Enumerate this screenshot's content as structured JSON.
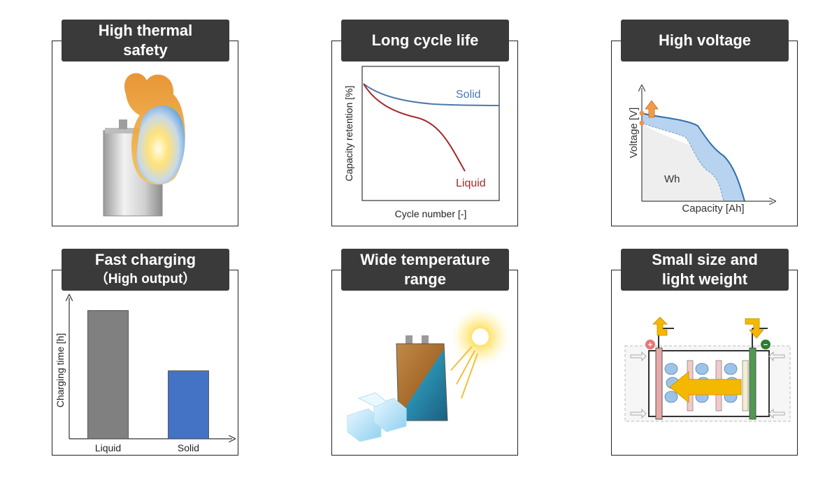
{
  "panels": [
    {
      "id": "thermal",
      "title_lines": [
        "High thermal",
        "safety"
      ]
    },
    {
      "id": "cycle",
      "title_lines": [
        "Long cycle life"
      ]
    },
    {
      "id": "voltage",
      "title_lines": [
        "High voltage"
      ]
    },
    {
      "id": "charging",
      "title_lines": [
        "Fast charging",
        "（High output）"
      ]
    },
    {
      "id": "temperature",
      "title_lines": [
        "Wide temperature",
        "range"
      ]
    },
    {
      "id": "size",
      "title_lines": [
        "Small size and",
        "light weight"
      ]
    }
  ],
  "cycle_chart": {
    "ylabel": "Capacity retention [%]",
    "xlabel": "Cycle number [-]",
    "series": [
      {
        "name": "Solid",
        "color": "#4a79b0"
      },
      {
        "name": "Liquid",
        "color": "#a52a2a"
      }
    ]
  },
  "voltage_chart": {
    "ylabel": "Voltage [V]",
    "xlabel": "Capacity [Ah]",
    "area_label": "Wh",
    "fill_color": "#b7d3ef",
    "line_color": "#2f6fa8",
    "arrow_color": "#f39a4a"
  },
  "chart_data": {
    "type": "bar",
    "categories": [
      "Liquid",
      "Solid"
    ],
    "values": [
      100,
      53
    ],
    "colors": [
      "#808080",
      "#4472c4"
    ],
    "title": "",
    "xlabel": "",
    "ylabel": "Charging time [h]",
    "ylim": [
      0,
      110
    ]
  },
  "size_diagram": {
    "positive_symbol": "+",
    "negative_symbol": "−",
    "arrow_color": "#f5b800"
  }
}
